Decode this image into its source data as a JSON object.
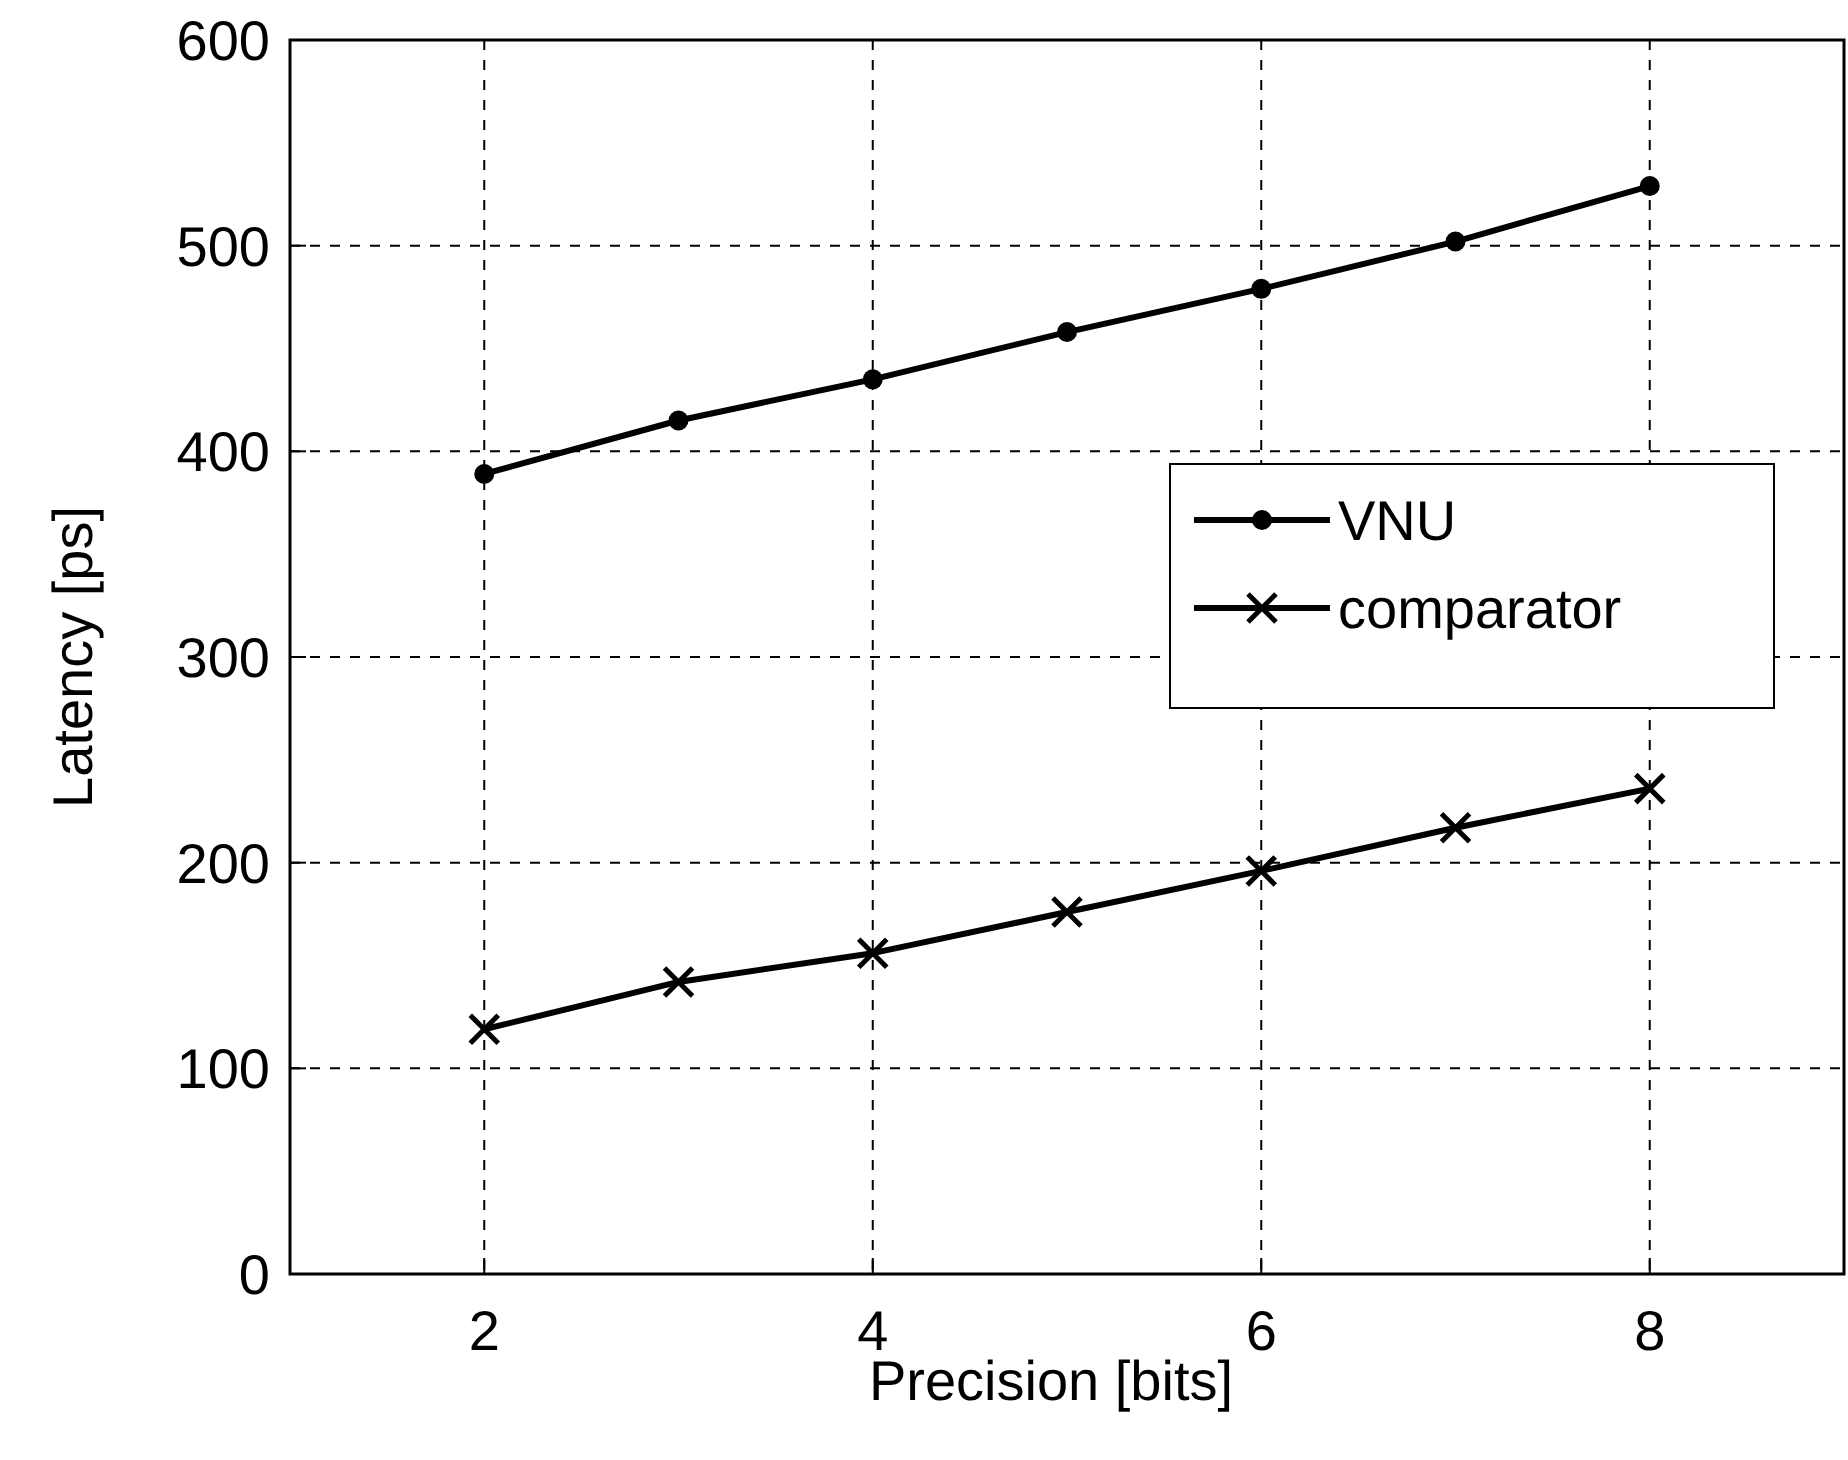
{
  "chart_data": {
    "type": "line",
    "xlabel": "Precision [bits]",
    "ylabel": "Latency [ps]",
    "x": [
      2,
      3,
      4,
      5,
      6,
      7,
      8
    ],
    "series": [
      {
        "name": "VNU",
        "color": "#000000",
        "marker": "circle",
        "values": [
          389,
          415,
          435,
          458,
          479,
          502,
          529
        ]
      },
      {
        "name": "comparator",
        "color": "#000000",
        "marker": "cross",
        "values": [
          119,
          142,
          156,
          176,
          196,
          217,
          236
        ]
      }
    ],
    "xlim": [
      1,
      9
    ],
    "xticks": [
      2,
      4,
      6,
      8
    ],
    "ylim": [
      0,
      600
    ],
    "yticks": [
      0,
      100,
      200,
      300,
      400,
      500,
      600
    ],
    "grid": true,
    "legend": "right",
    "line_style": "solid"
  }
}
